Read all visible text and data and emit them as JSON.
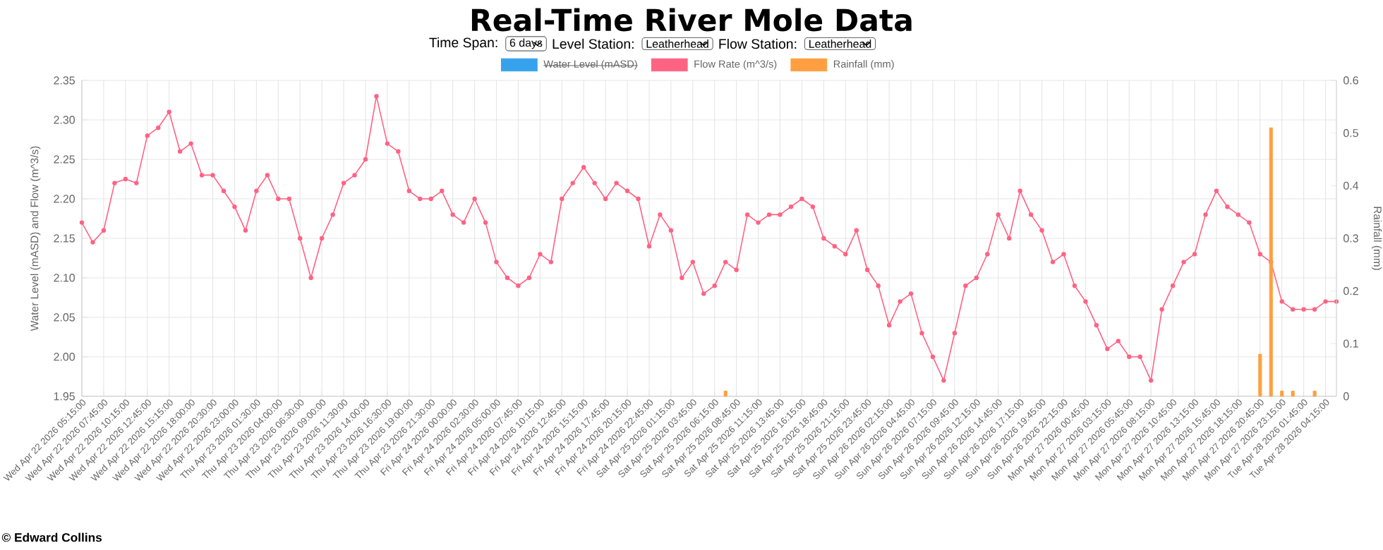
{
  "chart_data": {
    "type": "line",
    "title": "Real-Time River Mole Data",
    "annotations": [
      "Time Span:",
      "6 days",
      "Level Station:",
      "Leatherhead",
      "Flow Station:",
      "Leatherhead",
      "© Edward Collins"
    ],
    "categories": [
      "Wed Apr 22 2026 05:15:00",
      null,
      "Wed Apr 22 2026 07:45:00",
      null,
      "Wed Apr 22 2026 10:15:00",
      null,
      "Wed Apr 22 2026 12:45:00",
      null,
      "Wed Apr 22 2026 15:15:00",
      null,
      "Wed Apr 22 2026 18:00:00",
      null,
      "Wed Apr 22 2026 20:30:00",
      null,
      "Wed Apr 22 2026 23:00:00",
      null,
      "Thu Apr 23 2026 01:30:00",
      null,
      "Thu Apr 23 2026 04:00:00",
      null,
      "Thu Apr 23 2026 06:30:00",
      null,
      "Thu Apr 23 2026 09:00:00",
      null,
      "Thu Apr 23 2026 11:30:00",
      null,
      "Thu Apr 23 2026 14:00:00",
      null,
      "Thu Apr 23 2026 16:30:00",
      null,
      "Thu Apr 23 2026 19:00:00",
      null,
      "Thu Apr 23 2026 21:30:00",
      null,
      "Fri Apr 24 2026 00:00:00",
      null,
      "Fri Apr 24 2026 02:30:00",
      null,
      "Fri Apr 24 2026 05:00:00",
      null,
      "Fri Apr 24 2026 07:45:00",
      null,
      "Fri Apr 24 2026 10:15:00",
      null,
      "Fri Apr 24 2026 12:45:00",
      null,
      "Fri Apr 24 2026 15:15:00",
      null,
      "Fri Apr 24 2026 17:45:00",
      null,
      "Fri Apr 24 2026 20:15:00",
      null,
      "Fri Apr 24 2026 22:45:00",
      null,
      "Sat Apr 25 2026 01:15:00",
      null,
      "Sat Apr 25 2026 03:45:00",
      null,
      "Sat Apr 25 2026 06:15:00",
      null,
      "Sat Apr 25 2026 08:45:00",
      null,
      "Sat Apr 25 2026 11:15:00",
      null,
      "Sat Apr 25 2026 13:45:00",
      null,
      "Sat Apr 25 2026 16:15:00",
      null,
      "Sat Apr 25 2026 18:45:00",
      null,
      "Sat Apr 25 2026 21:15:00",
      null,
      "Sat Apr 25 2026 23:45:00",
      null,
      "Sun Apr 26 2026 02:15:00",
      null,
      "Sun Apr 26 2026 04:45:00",
      null,
      "Sun Apr 26 2026 07:15:00",
      null,
      "Sun Apr 26 2026 09:45:00",
      null,
      "Sun Apr 26 2026 12:15:00",
      null,
      "Sun Apr 26 2026 14:45:00",
      null,
      "Sun Apr 26 2026 17:15:00",
      null,
      "Sun Apr 26 2026 19:45:00",
      null,
      "Sun Apr 26 2026 22:15:00",
      null,
      "Mon Apr 27 2026 00:45:00",
      null,
      "Mon Apr 27 2026 03:15:00",
      null,
      "Mon Apr 27 2026 05:45:00",
      null,
      "Mon Apr 27 2026 08:15:00",
      null,
      "Mon Apr 27 2026 10:45:00",
      null,
      "Mon Apr 27 2026 13:15:00",
      null,
      "Mon Apr 27 2026 15:45:00",
      null,
      "Mon Apr 27 2026 18:15:00",
      null,
      "Mon Apr 27 2026 20:45:00",
      null,
      "Mon Apr 27 2026 23:15:00",
      null,
      "Tue Apr 28 2026 01:45:00",
      null,
      "Tue Apr 28 2026 04:15:00",
      null
    ],
    "series": [
      {
        "name": "Water Level (mASD)",
        "color": "#36a2eb",
        "values": [
          null,
          null,
          null,
          null,
          null,
          null,
          null,
          null,
          null,
          null,
          null,
          null,
          null,
          null,
          null,
          null,
          null,
          null,
          null,
          null,
          null,
          null,
          null,
          null,
          null,
          null,
          null,
          null,
          null,
          null,
          null,
          null,
          null,
          null,
          null,
          null,
          null,
          null,
          null,
          null,
          null,
          null,
          null,
          null,
          null,
          null,
          null,
          null,
          null,
          null,
          null,
          null,
          null,
          null,
          null,
          null,
          null,
          null,
          null,
          null,
          null,
          null,
          null,
          null,
          null,
          null,
          null,
          null,
          null,
          null,
          null,
          null,
          null,
          null,
          null,
          null,
          null,
          null,
          null,
          null,
          null,
          null,
          null,
          null,
          null,
          null,
          null,
          null,
          null,
          null,
          null,
          null,
          null,
          null,
          null,
          null,
          null,
          null,
          null,
          null,
          null,
          null,
          null,
          null,
          null,
          null,
          null,
          null,
          null,
          null,
          null,
          null,
          null,
          null,
          null,
          null
        ]
      },
      {
        "name": "Flow Rate (m^3/s)",
        "color": "#ff6384",
        "values": [
          2.17,
          2.145,
          2.16,
          2.22,
          2.225,
          2.22,
          2.28,
          2.29,
          2.31,
          2.26,
          2.27,
          2.23,
          2.23,
          2.21,
          2.19,
          2.16,
          2.21,
          2.23,
          2.2,
          2.2,
          2.15,
          2.1,
          2.15,
          2.18,
          2.22,
          2.23,
          2.25,
          2.33,
          2.27,
          2.26,
          2.21,
          2.2,
          2.2,
          2.21,
          2.18,
          2.17,
          2.2,
          2.17,
          2.12,
          2.1,
          2.09,
          2.1,
          2.13,
          2.12,
          2.2,
          2.22,
          2.24,
          2.22,
          2.2,
          2.22,
          2.21,
          2.2,
          2.14,
          2.18,
          2.16,
          2.1,
          2.12,
          2.08,
          2.09,
          2.12,
          2.11,
          2.18,
          2.17,
          2.18,
          2.18,
          2.19,
          2.2,
          2.19,
          2.15,
          2.14,
          2.13,
          2.16,
          2.11,
          2.09,
          2.04,
          2.07,
          2.08,
          2.03,
          2.0,
          1.97,
          2.03,
          2.09,
          2.1,
          2.13,
          2.18,
          2.15,
          2.21,
          2.18,
          2.16,
          2.12,
          2.13,
          2.09,
          2.07,
          2.04,
          2.01,
          2.02,
          2.0,
          2.0,
          1.97,
          2.06,
          2.09,
          2.12,
          2.13,
          2.18,
          2.21,
          2.19,
          2.18,
          2.17,
          2.13,
          2.12,
          2.07,
          2.06,
          2.06,
          2.06,
          2.07,
          2.07
        ]
      },
      {
        "name": "Rainfall (mm)",
        "color": "#ff9f40",
        "type": "bar",
        "axis": "y2",
        "values": [
          null,
          null,
          null,
          null,
          null,
          null,
          null,
          null,
          null,
          null,
          null,
          null,
          null,
          null,
          null,
          null,
          null,
          null,
          null,
          null,
          null,
          null,
          null,
          null,
          null,
          null,
          null,
          null,
          null,
          null,
          null,
          null,
          null,
          null,
          null,
          null,
          null,
          null,
          null,
          null,
          null,
          null,
          null,
          null,
          null,
          null,
          null,
          null,
          null,
          null,
          null,
          null,
          null,
          null,
          null,
          null,
          null,
          null,
          null,
          0.01,
          null,
          null,
          null,
          null,
          null,
          null,
          null,
          null,
          null,
          null,
          null,
          null,
          null,
          null,
          null,
          null,
          null,
          null,
          null,
          null,
          null,
          null,
          null,
          null,
          null,
          null,
          null,
          null,
          null,
          null,
          null,
          null,
          null,
          null,
          null,
          null,
          null,
          null,
          null,
          null,
          null,
          null,
          null,
          null,
          null,
          null,
          null,
          null,
          0.08,
          0.51,
          0.01,
          0.01,
          null,
          0.01,
          null,
          null
        ]
      }
    ],
    "ylabel": "Water Level (mASD) and Flow (m^3/s)",
    "y2label": "Rainfall (mm)",
    "ylim": [
      1.95,
      2.35
    ],
    "yticks": [
      1.95,
      {
        "value": 2.0,
        "label": "2.00"
      },
      2.05,
      {
        "value": 2.1,
        "label": "2.10"
      },
      2.15,
      {
        "value": 2.2,
        "label": "2.20"
      },
      2.25,
      {
        "value": 2.3,
        "label": "2.30"
      },
      2.35
    ],
    "y2lim": [
      0,
      0.6
    ],
    "y2ticks": [
      0,
      0.1,
      0.2,
      0.3,
      0.4,
      0.5,
      0.6
    ],
    "grid": true,
    "legend": "top",
    "marker": "circle",
    "line_style": "solid"
  }
}
